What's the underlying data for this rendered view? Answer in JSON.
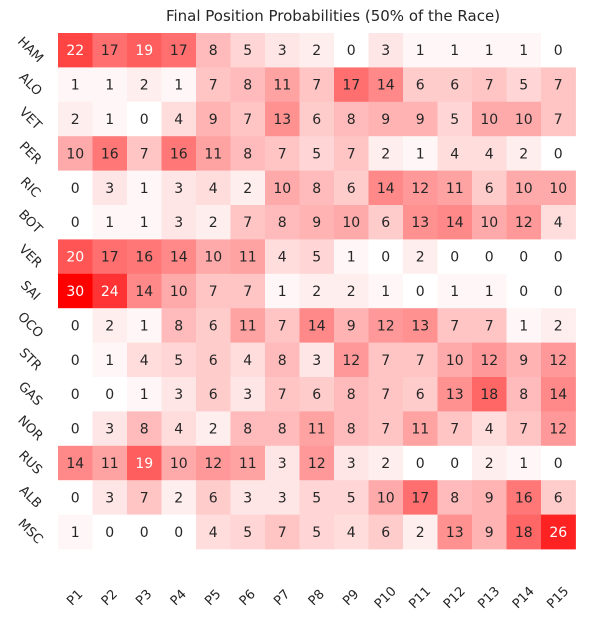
{
  "chart_data": {
    "type": "heatmap",
    "title": "Final Position Probabilities (50% of the Race)",
    "xlabel": "",
    "ylabel": "",
    "x_categories": [
      "P1",
      "P2",
      "P3",
      "P4",
      "P5",
      "P6",
      "P7",
      "P8",
      "P9",
      "P10",
      "P11",
      "P12",
      "P13",
      "P14",
      "P15"
    ],
    "y_categories": [
      "HAM",
      "ALO",
      "VET",
      "PER",
      "RIC",
      "BOT",
      "VER",
      "SAI",
      "OCO",
      "STR",
      "GAS",
      "NOR",
      "RUS",
      "ALB",
      "MSC"
    ],
    "values": [
      [
        22,
        17,
        19,
        17,
        8,
        5,
        3,
        2,
        0,
        3,
        1,
        1,
        1,
        1,
        0
      ],
      [
        1,
        1,
        2,
        1,
        7,
        8,
        11,
        7,
        17,
        14,
        6,
        6,
        7,
        5,
        7
      ],
      [
        2,
        1,
        0,
        4,
        9,
        7,
        13,
        6,
        8,
        9,
        9,
        5,
        10,
        10,
        7
      ],
      [
        10,
        16,
        7,
        16,
        11,
        8,
        7,
        5,
        7,
        2,
        1,
        4,
        4,
        2,
        0
      ],
      [
        0,
        3,
        1,
        3,
        4,
        2,
        10,
        8,
        6,
        14,
        12,
        11,
        6,
        10,
        10
      ],
      [
        0,
        1,
        1,
        3,
        2,
        7,
        8,
        9,
        10,
        6,
        13,
        14,
        10,
        12,
        4
      ],
      [
        20,
        17,
        16,
        14,
        10,
        11,
        4,
        5,
        1,
        0,
        2,
        0,
        0,
        0,
        0
      ],
      [
        30,
        24,
        14,
        10,
        7,
        7,
        1,
        2,
        2,
        1,
        0,
        1,
        1,
        0,
        0
      ],
      [
        0,
        2,
        1,
        8,
        6,
        11,
        7,
        14,
        9,
        12,
        13,
        7,
        7,
        1,
        2
      ],
      [
        0,
        1,
        4,
        5,
        6,
        4,
        8,
        3,
        12,
        7,
        7,
        10,
        12,
        9,
        12
      ],
      [
        0,
        0,
        1,
        3,
        6,
        3,
        7,
        6,
        8,
        7,
        6,
        13,
        18,
        8,
        14
      ],
      [
        0,
        3,
        8,
        4,
        2,
        8,
        8,
        11,
        8,
        7,
        11,
        7,
        4,
        7,
        12
      ],
      [
        14,
        11,
        19,
        10,
        12,
        11,
        3,
        12,
        3,
        2,
        0,
        0,
        2,
        1,
        0
      ],
      [
        0,
        3,
        7,
        2,
        6,
        3,
        3,
        5,
        5,
        10,
        17,
        8,
        9,
        16,
        6
      ],
      [
        1,
        0,
        0,
        0,
        4,
        5,
        7,
        5,
        4,
        6,
        2,
        13,
        9,
        18,
        26
      ]
    ],
    "color_min": 0,
    "color_max": 30,
    "colors": {
      "low": "#ffffff",
      "high": "#ff0000",
      "text_dark": "#262626",
      "text_light": "#ffffff"
    },
    "grid": false,
    "legend": "none"
  }
}
